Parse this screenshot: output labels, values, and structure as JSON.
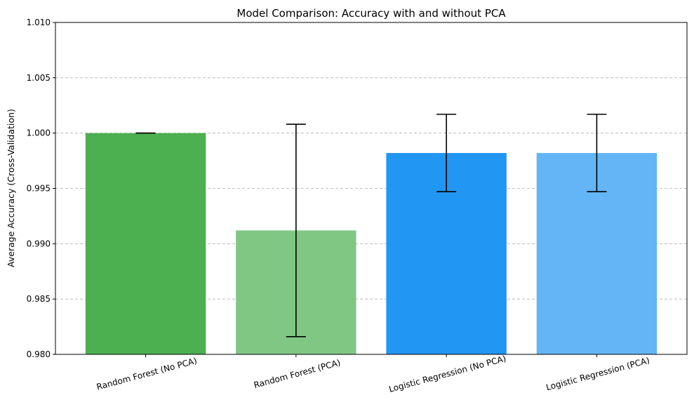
{
  "chart_data": {
    "type": "bar",
    "title": "Model Comparison: Accuracy with and without PCA",
    "xlabel": "",
    "ylabel": "Average Accuracy (Cross-Validation)",
    "ylim": [
      0.98,
      1.01
    ],
    "yticks": [
      0.98,
      0.985,
      0.99,
      0.995,
      1.0,
      1.005,
      1.01
    ],
    "ytick_labels": [
      "0.980",
      "0.985",
      "0.990",
      "0.995",
      "1.000",
      "1.005",
      "1.010"
    ],
    "grid": "y",
    "categories": [
      "Random Forest (No PCA)",
      "Random Forest (PCA)",
      "Logistic Regression (No PCA)",
      "Logistic Regression (PCA)"
    ],
    "values": [
      1.0,
      0.9912,
      0.9982,
      0.9982
    ],
    "errors": [
      0.0,
      0.0096,
      0.0035,
      0.0035
    ],
    "colors": [
      "#4caf50",
      "#81c784",
      "#2196f3",
      "#64b5f6"
    ]
  }
}
